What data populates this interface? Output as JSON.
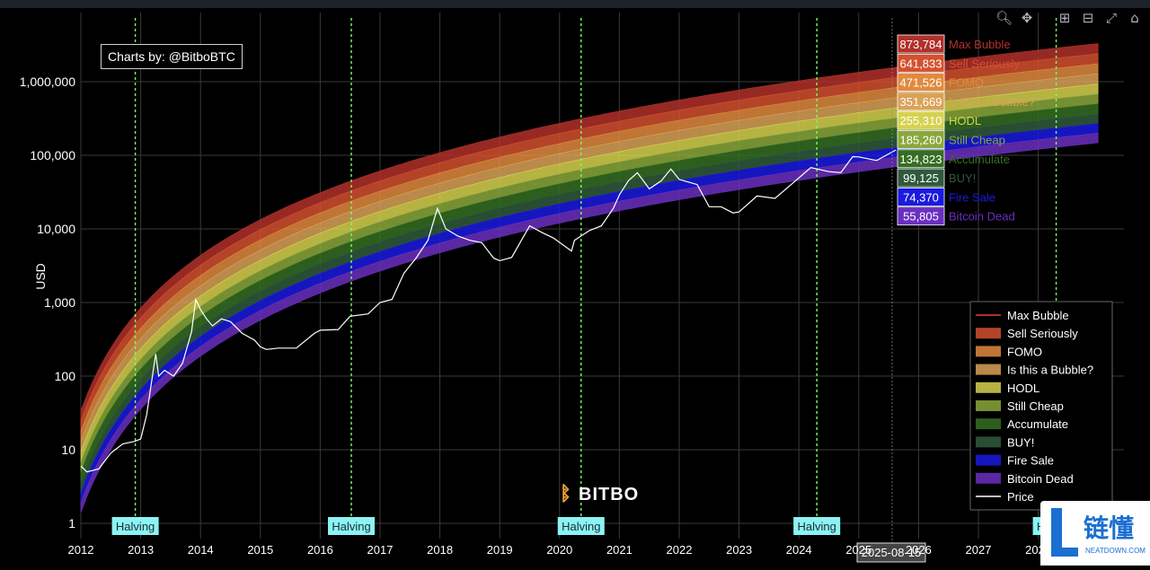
{
  "credit": "Charts by: @BitboBTC",
  "logo_text": "BITBO",
  "cursor_date": "2025-08-15",
  "watermark": {
    "cn": "链懂",
    "en": "NEATDOWN.COM"
  },
  "colors": {
    "background": "#000000",
    "price_line": "#ffffff",
    "halving_line": "#7CFC64",
    "halving_label_bg": "#8cf3f3"
  },
  "toolbar": [
    "zoom-icon",
    "pan-icon",
    "zoom-in-icon",
    "zoom-out-icon",
    "autoscale-icon",
    "reset-icon"
  ],
  "chart_data": {
    "type": "area",
    "title": "",
    "ylabel": "USD",
    "xlabel": "",
    "yscale": "log",
    "ylim": [
      1,
      5000000
    ],
    "xlim": [
      2012,
      2029
    ],
    "xticks": [
      "2012",
      "2013",
      "2014",
      "2015",
      "2016",
      "2017",
      "2018",
      "2019",
      "2020",
      "2021",
      "2022",
      "2023",
      "2024",
      "2025",
      "2026",
      "2027",
      "2028"
    ],
    "yticks": [
      {
        "value": 1,
        "label": "1"
      },
      {
        "value": 10,
        "label": "10"
      },
      {
        "value": 100,
        "label": "100"
      },
      {
        "value": 1000,
        "label": "1,000"
      },
      {
        "value": 10000,
        "label": "10,000"
      },
      {
        "value": 100000,
        "label": "100,000"
      },
      {
        "value": 1000000,
        "label": "1,000,000"
      }
    ],
    "grid": true,
    "legend_position": "bottom-right",
    "band_floor_start": 1.4,
    "halvings": [
      {
        "date": 2012.91,
        "label": "Halving"
      },
      {
        "date": 2016.52,
        "label": "Halving"
      },
      {
        "date": 2020.36,
        "label": "Halving"
      },
      {
        "date": 2024.3,
        "label": "Halving"
      },
      {
        "date": 2028.3,
        "label": "Halving"
      }
    ],
    "bands": [
      {
        "name": "Max Bubble",
        "color": "#b1302a",
        "start": 34,
        "end": 3300000,
        "current": "873,784"
      },
      {
        "name": "Sell Seriously",
        "color": "#d4502f",
        "start": 25,
        "end": 2400000,
        "current": "641,833"
      },
      {
        "name": "FOMO",
        "color": "#e08a3e",
        "start": 18,
        "end": 1750000,
        "current": "471,526"
      },
      {
        "name": "Is this a Bubble?",
        "color": "#d9a257",
        "start": 13,
        "end": 1280000,
        "current": "351,669"
      },
      {
        "name": "HODL",
        "color": "#d6d24f",
        "start": 9.5,
        "end": 930000,
        "current": "255,310"
      },
      {
        "name": "Still Cheap",
        "color": "#8aa83b",
        "start": 6.8,
        "end": 680000,
        "current": "185,260"
      },
      {
        "name": "Accumulate",
        "color": "#356e22",
        "start": 5,
        "end": 500000,
        "current": "134,823"
      },
      {
        "name": "BUY!",
        "color": "#2f5a3c",
        "start": 3.6,
        "end": 365000,
        "current": "99,125"
      },
      {
        "name": "Fire Sale",
        "color": "#1a1ae0",
        "start": 2.6,
        "end": 270000,
        "current": "74,370"
      },
      {
        "name": "Bitcoin Dead",
        "color": "#6a2fc0",
        "start": 1.9,
        "end": 200000,
        "current": "55,805"
      }
    ],
    "price_series": {
      "name": "Price",
      "x": [
        2012.0,
        2012.1,
        2012.3,
        2012.5,
        2012.7,
        2012.9,
        2013.0,
        2013.1,
        2013.25,
        2013.3,
        2013.4,
        2013.55,
        2013.7,
        2013.85,
        2013.92,
        2014.0,
        2014.1,
        2014.2,
        2014.35,
        2014.5,
        2014.7,
        2014.9,
        2015.0,
        2015.1,
        2015.3,
        2015.6,
        2015.9,
        2016.0,
        2016.3,
        2016.5,
        2016.8,
        2017.0,
        2017.2,
        2017.4,
        2017.6,
        2017.8,
        2017.96,
        2018.1,
        2018.3,
        2018.5,
        2018.7,
        2018.9,
        2019.0,
        2019.2,
        2019.5,
        2019.7,
        2019.9,
        2020.2,
        2020.25,
        2020.5,
        2020.7,
        2020.9,
        2021.0,
        2021.15,
        2021.3,
        2021.5,
        2021.7,
        2021.86,
        2022.0,
        2022.3,
        2022.5,
        2022.7,
        2022.9,
        2023.0,
        2023.3,
        2023.6,
        2023.9,
        2024.2,
        2024.5,
        2024.7,
        2024.9,
        2025.0,
        2025.3,
        2025.62
      ],
      "y": [
        6,
        5,
        5.5,
        9,
        12,
        13,
        14,
        30,
        200,
        100,
        120,
        100,
        150,
        400,
        1100,
        800,
        600,
        480,
        600,
        550,
        380,
        310,
        250,
        230,
        240,
        240,
        380,
        420,
        430,
        650,
        700,
        1000,
        1100,
        2500,
        4000,
        7000,
        19000,
        10000,
        8000,
        7000,
        6500,
        4000,
        3700,
        4100,
        11000,
        9000,
        7500,
        5000,
        7000,
        9500,
        11000,
        19000,
        29000,
        45000,
        58000,
        35000,
        45000,
        65000,
        47000,
        40000,
        20000,
        20000,
        16500,
        17000,
        28000,
        26000,
        42000,
        68000,
        60000,
        58000,
        96000,
        95000,
        85000,
        118000
      ]
    }
  }
}
